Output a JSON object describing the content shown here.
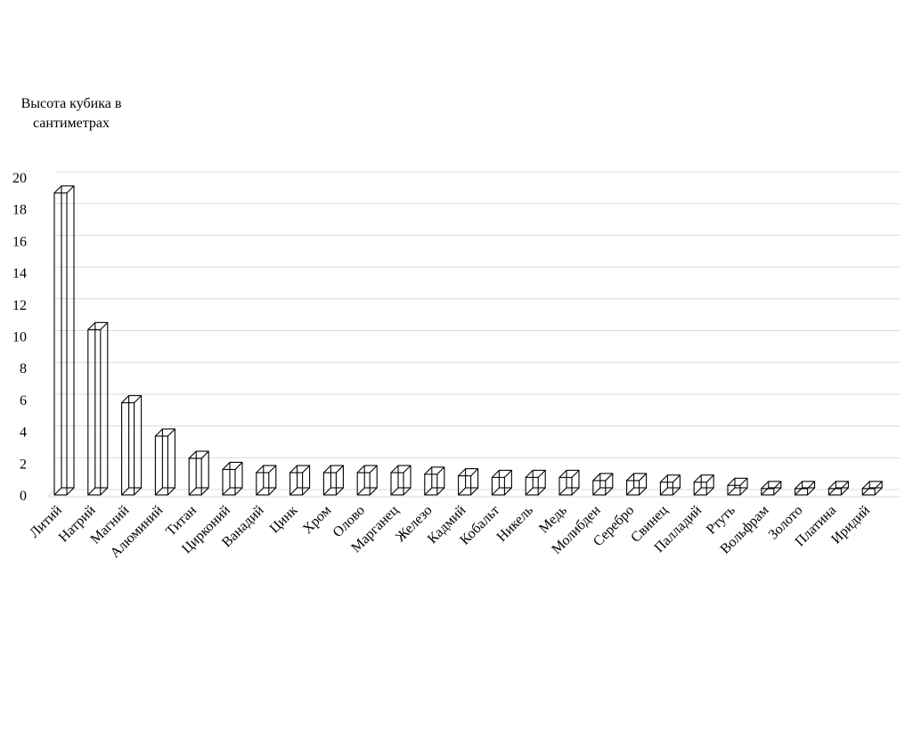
{
  "chart_data": {
    "type": "bar",
    "style": "3d-wireframe-columns",
    "ylabel": "Высота кубика в сантиметрах",
    "xlabel": "",
    "title": "",
    "ylim": [
      0,
      20
    ],
    "yticks": [
      0,
      2,
      4,
      6,
      8,
      10,
      12,
      14,
      16,
      18,
      20
    ],
    "grid": true,
    "legend": "none",
    "categories": [
      "Литий",
      "Натрий",
      "Магний",
      "Алюминий",
      "Титан",
      "Цирконий",
      "Ванадий",
      "Цинк",
      "Хром",
      "Олово",
      "Марганец",
      "Железо",
      "Кадмий",
      "Кобальт",
      "Никель",
      "Медь",
      "Молибден",
      "Серебро",
      "Свинец",
      "Палладий",
      "Ртуть",
      "Вольфрам",
      "Золото",
      "Платина",
      "Иридий"
    ],
    "values": [
      19.0,
      10.4,
      5.8,
      3.7,
      2.3,
      1.6,
      1.4,
      1.4,
      1.4,
      1.4,
      1.4,
      1.3,
      1.2,
      1.1,
      1.1,
      1.1,
      0.9,
      0.9,
      0.8,
      0.8,
      0.6,
      0.4,
      0.4,
      0.4,
      0.4
    ],
    "colors": {
      "bar_fill": "#ffffff",
      "bar_stroke": "#000000",
      "grid": "#d9d9d9"
    }
  }
}
